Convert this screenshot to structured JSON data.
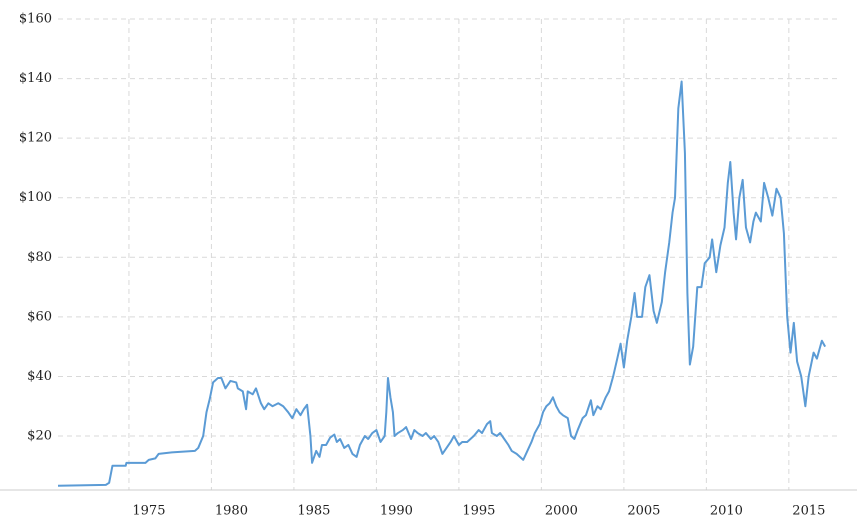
{
  "chart_data": {
    "type": "line",
    "color": "#5b9bd5",
    "grid": true,
    "xlim": [
      1970.7,
      2018.1
    ],
    "xticks": [
      1975,
      1980,
      1985,
      1990,
      1995,
      2000,
      2005,
      2010,
      2015
    ],
    "ylim": [
      0,
      160
    ],
    "yticks": [
      {
        "value": 20,
        "label": "$20"
      },
      {
        "value": 40,
        "label": "$40"
      },
      {
        "value": 60,
        "label": "$60"
      },
      {
        "value": 80,
        "label": "$80"
      },
      {
        "value": 100,
        "label": "$100"
      },
      {
        "value": 120,
        "label": "$120"
      },
      {
        "value": 140,
        "label": "$140"
      },
      {
        "value": 160,
        "label": "$160"
      }
    ],
    "x": [
      1970.7,
      1973.6,
      1973.8,
      1974.0,
      1974.8,
      1974.85,
      1976.0,
      1976.2,
      1976.6,
      1976.8,
      1977.6,
      1979.0,
      1979.2,
      1979.5,
      1979.7,
      1979.9,
      1980.1,
      1980.4,
      1980.6,
      1980.85,
      1981.15,
      1981.5,
      1981.6,
      1981.9,
      1982.1,
      1982.2,
      1982.5,
      1982.7,
      1983.0,
      1983.2,
      1983.45,
      1983.7,
      1984.05,
      1984.35,
      1984.65,
      1984.9,
      1985.15,
      1985.4,
      1985.6,
      1985.8,
      1986.0,
      1986.1,
      1986.35,
      1986.55,
      1986.7,
      1986.95,
      1987.2,
      1987.45,
      1987.6,
      1987.8,
      1988.05,
      1988.3,
      1988.55,
      1988.8,
      1989.0,
      1989.3,
      1989.5,
      1989.75,
      1990.0,
      1990.25,
      1990.5,
      1990.6,
      1990.7,
      1990.85,
      1991.0,
      1991.1,
      1991.3,
      1991.6,
      1991.8,
      1992.1,
      1992.3,
      1992.5,
      1992.8,
      1993.0,
      1993.3,
      1993.5,
      1993.75,
      1994.0,
      1994.25,
      1994.5,
      1994.7,
      1995.0,
      1995.2,
      1995.5,
      1995.7,
      1995.9,
      1996.2,
      1996.4,
      1996.7,
      1996.9,
      1997.0,
      1997.3,
      1997.5,
      1997.75,
      1998.0,
      1998.2,
      1998.5,
      1998.7,
      1998.9,
      1999.15,
      1999.4,
      1999.6,
      1999.9,
      2000.1,
      2000.3,
      2000.5,
      2000.7,
      2000.9,
      2001.1,
      2001.3,
      2001.6,
      2001.8,
      2002.0,
      2002.2,
      2002.5,
      2002.7,
      2003.0,
      2003.15,
      2003.4,
      2003.6,
      2003.9,
      2004.1,
      2004.35,
      2004.6,
      2004.8,
      2005.0,
      2005.2,
      2005.45,
      2005.65,
      2005.8,
      2006.1,
      2006.3,
      2006.55,
      2006.8,
      2007.0,
      2007.3,
      2007.5,
      2007.75,
      2007.95,
      2008.1,
      2008.3,
      2008.5,
      2008.7,
      2008.85,
      2009.0,
      2009.2,
      2009.45,
      2009.7,
      2009.9,
      2010.2,
      2010.35,
      2010.6,
      2010.85,
      2011.1,
      2011.3,
      2011.45,
      2011.65,
      2011.8,
      2012.0,
      2012.2,
      2012.4,
      2012.65,
      2012.85,
      2013.0,
      2013.3,
      2013.5,
      2013.75,
      2014.0,
      2014.25,
      2014.5,
      2014.7,
      2014.9,
      2015.1,
      2015.3,
      2015.5,
      2015.75,
      2016.0,
      2016.2,
      2016.5,
      2016.7,
      2017.0,
      2017.2
    ],
    "values": [
      3.3,
      3.6,
      4.3,
      10,
      10,
      11,
      11,
      12,
      12.5,
      14,
      14.5,
      15,
      16,
      20,
      28,
      32.5,
      38,
      39.5,
      39.5,
      36,
      38.5,
      38,
      36,
      35,
      29,
      35,
      34,
      36,
      31,
      29,
      31,
      30,
      31,
      30,
      28,
      26,
      29,
      27,
      29,
      30.5,
      20,
      11,
      15,
      13,
      17,
      17,
      19.5,
      20.5,
      18,
      19,
      16,
      17,
      14,
      13,
      17,
      20,
      19,
      21,
      22,
      18,
      20,
      28,
      39.5,
      33,
      28,
      20,
      21,
      22,
      23,
      19,
      22,
      21,
      20,
      21,
      19,
      20,
      18,
      14,
      16,
      18,
      20,
      17,
      18,
      18,
      19,
      20,
      22,
      21,
      24,
      25,
      21,
      20,
      21,
      19,
      17,
      15,
      14,
      13,
      12,
      15,
      18,
      21,
      24,
      28,
      30,
      31,
      33,
      30,
      28,
      27,
      26,
      20,
      19,
      22,
      26,
      27,
      32,
      27,
      30,
      29,
      33,
      35,
      40,
      46,
      51,
      43,
      52,
      60,
      68,
      60,
      60,
      70,
      74,
      62,
      58,
      65,
      75,
      85,
      95,
      100,
      130,
      139,
      115,
      68,
      44,
      50,
      70,
      70,
      78,
      80,
      86,
      75,
      84,
      90,
      105,
      112,
      95,
      86,
      100,
      106,
      90,
      85,
      92,
      95,
      92,
      105,
      100,
      94,
      103,
      100,
      88,
      60,
      48,
      58,
      45,
      40,
      30,
      40,
      48,
      46,
      52,
      50
    ]
  }
}
